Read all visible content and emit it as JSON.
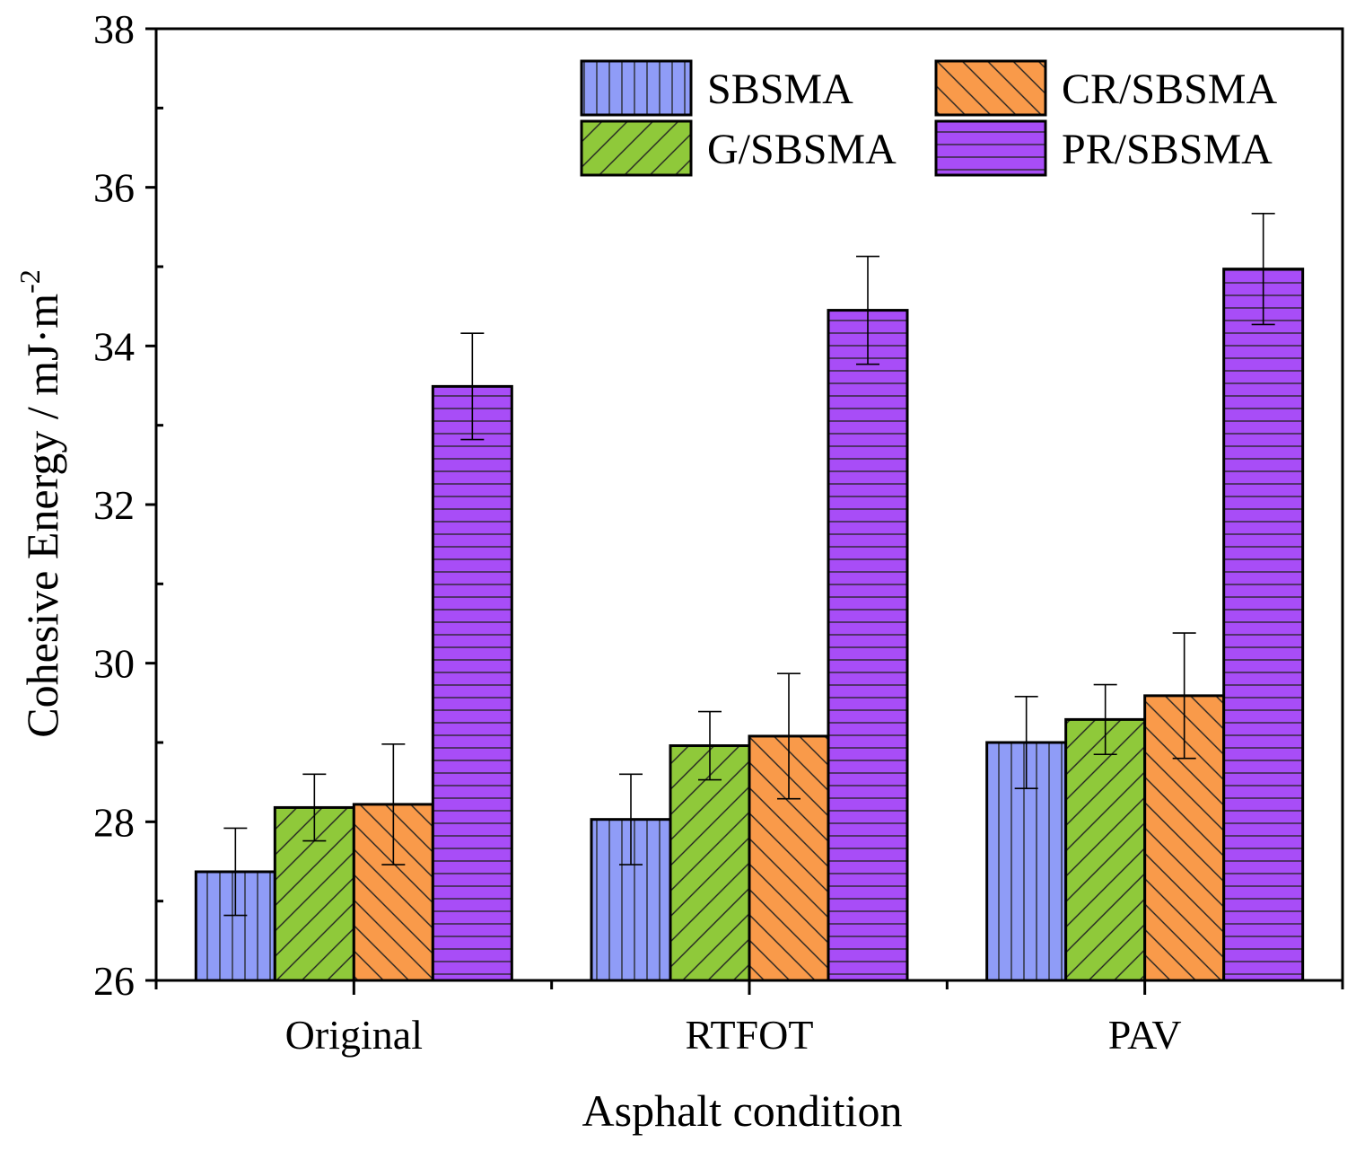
{
  "chart_data": {
    "type": "bar",
    "title": "",
    "xlabel": "Asphalt condition",
    "ylabel": "Cohesive Energy / mJ·m",
    "ylabel_superscript": "-2",
    "ylim": [
      26,
      38
    ],
    "yticks": [
      "26",
      "28",
      "30",
      "32",
      "34",
      "36",
      "38"
    ],
    "categories": [
      "Original",
      "RTFOT",
      "PAV"
    ],
    "legend_position": "top-right",
    "series": [
      {
        "name": "SBSMA",
        "color": "#8f9cf7",
        "pattern": "vertical",
        "values": [
          27.37,
          28.03,
          29.0
        ],
        "errors": [
          0.55,
          0.57,
          0.58
        ]
      },
      {
        "name": "G/SBSMA",
        "color": "#8fc93a",
        "pattern": "forward-diagonal",
        "values": [
          28.18,
          28.96,
          29.29
        ],
        "errors": [
          0.42,
          0.43,
          0.44
        ]
      },
      {
        "name": "CR/SBSMA",
        "color": "#f99a4a",
        "pattern": "backward-diagonal",
        "values": [
          28.22,
          29.08,
          29.59
        ],
        "errors": [
          0.76,
          0.79,
          0.79
        ]
      },
      {
        "name": "PR/SBSMA",
        "color": "#a84df7",
        "pattern": "horizontal",
        "values": [
          33.49,
          34.45,
          34.97
        ],
        "errors": [
          0.67,
          0.68,
          0.7
        ]
      }
    ]
  }
}
